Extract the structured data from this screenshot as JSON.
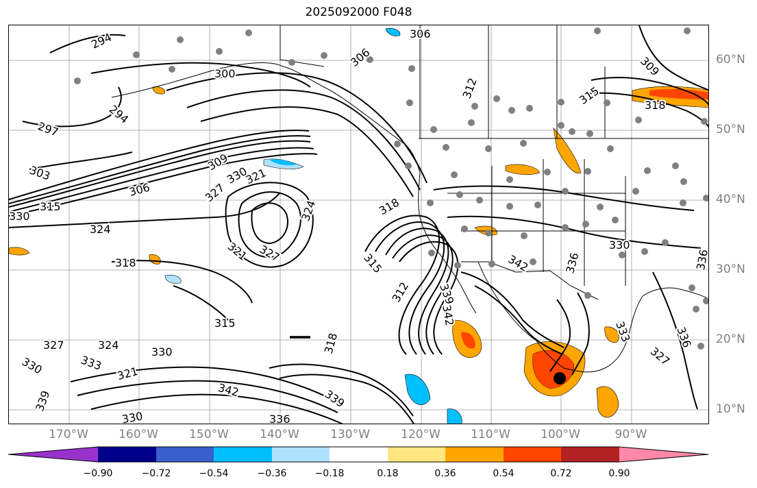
{
  "title": "2025092000 F048",
  "lon_labels": [
    "170°W",
    "160°W",
    "150°W",
    "140°W",
    "130°W",
    "120°W",
    "110°W",
    "100°W",
    "90°W"
  ],
  "lat_labels": [
    "60°N",
    "50°N",
    "40°N",
    "30°N",
    "20°N",
    "10°N"
  ],
  "colorbar": {
    "colors": [
      "#9932cc",
      "#00008b",
      "#3a5fcd",
      "#00bfff",
      "#b0e2ff",
      "#ffffff",
      "#ffe680",
      "#ffa500",
      "#ff4500",
      "#b22222",
      "#ff88aa"
    ],
    "labels": [
      "−0.90",
      "−0.72",
      "−0.54",
      "−0.36",
      "−0.18",
      "0.18",
      "0.36",
      "0.54",
      "0.72",
      "0.90"
    ]
  },
  "contour_labels": [
    "294",
    "300",
    "306",
    "294",
    "297",
    "303",
    "306",
    "309",
    "315",
    "330",
    "330",
    "324",
    "327",
    "321",
    "318",
    "324",
    "321",
    "327",
    "315",
    "318",
    "315",
    "312",
    "339",
    "342",
    "318",
    "327",
    "324",
    "330",
    "333",
    "321",
    "330",
    "342",
    "336",
    "339",
    "330",
    "339",
    "306",
    "312",
    "309",
    "315",
    "318",
    "336",
    "342",
    "330",
    "333",
    "327",
    "336",
    "336"
  ],
  "map_features": {
    "land_color": "#ffffff",
    "contour_color": "#000000",
    "station_color": "#808080",
    "grid_color": "#9a9a9a"
  }
}
